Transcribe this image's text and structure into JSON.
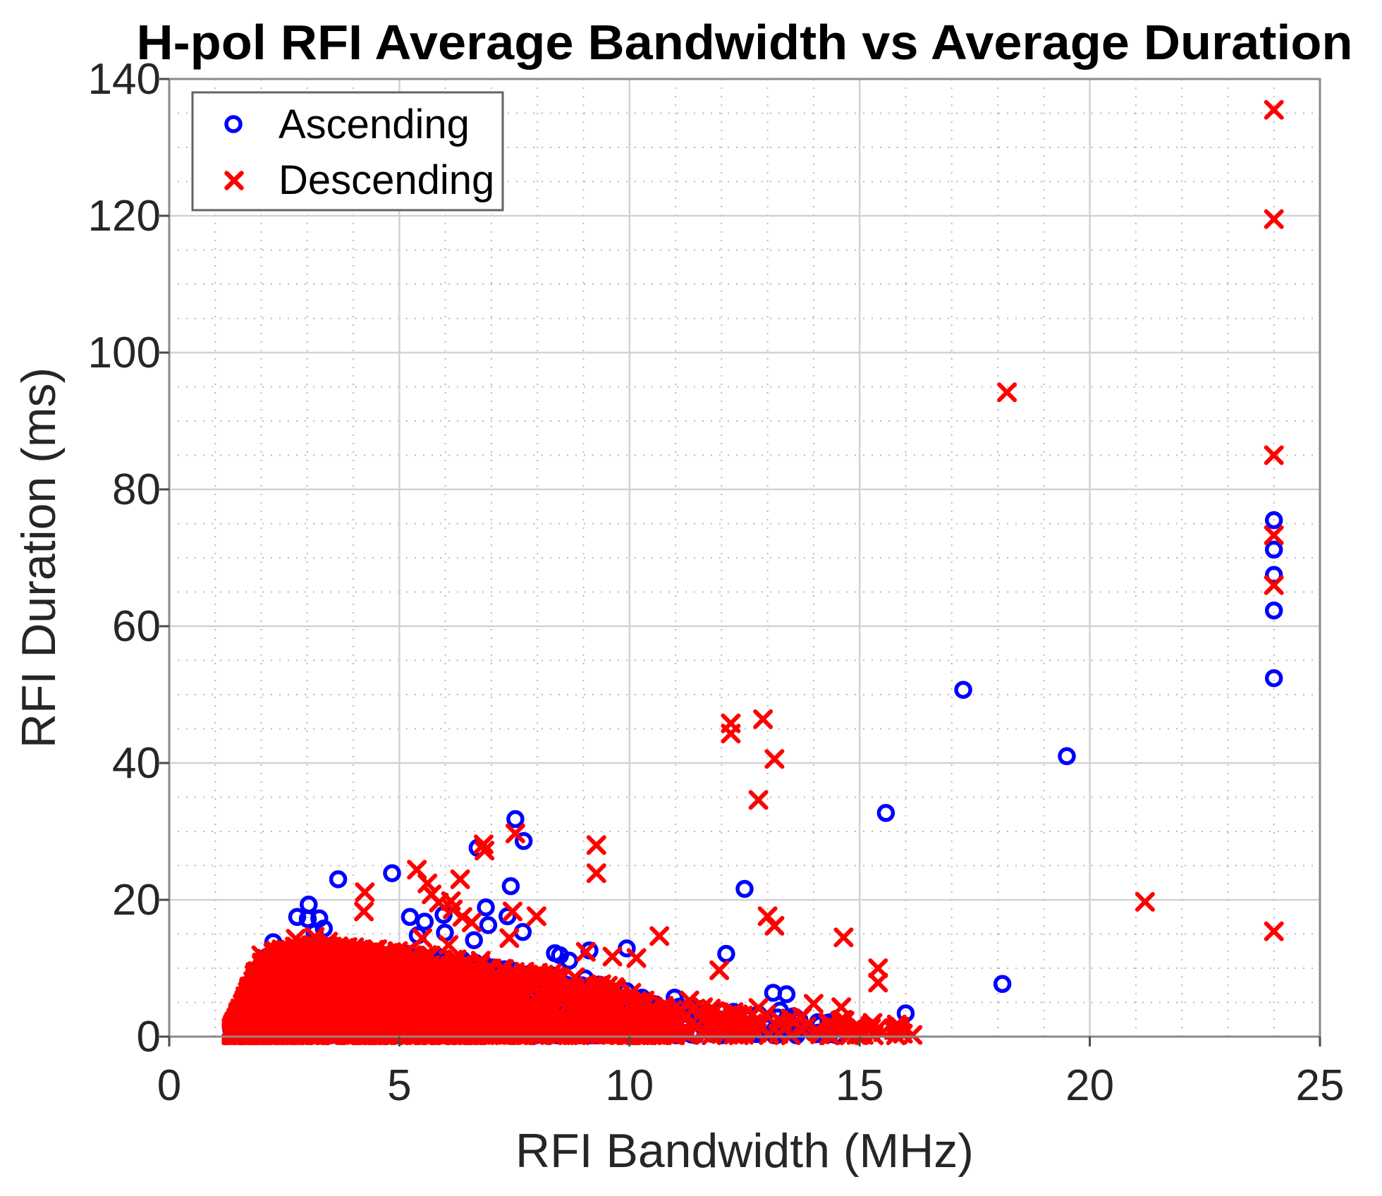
{
  "title": {
    "text": "H-pol RFI Average Bandwidth vs Average Duration"
  },
  "axes": {
    "x": {
      "label": "RFI Bandwidth (MHz)",
      "min": 0,
      "max": 25,
      "major_ticks": [
        0,
        5,
        10,
        15,
        20,
        25
      ],
      "minor_step": 1,
      "grid": true,
      "minor_grid": true
    },
    "y": {
      "label": "RFI Duration (ms)",
      "min": 0,
      "max": 140,
      "major_ticks": [
        0,
        20,
        40,
        60,
        80,
        100,
        120,
        140
      ],
      "minor_step": 5,
      "grid": true,
      "minor_grid": true
    }
  },
  "legend": {
    "position": "top-left",
    "entries": [
      {
        "label": "Ascending",
        "marker": "circle",
        "color": "#0000ff"
      },
      {
        "label": "Descending",
        "marker": "x",
        "color": "#ff0000"
      }
    ]
  },
  "colors": {
    "ascending": "#0000ff",
    "descending": "#ff0000",
    "grid_major": "#d2d2d2",
    "grid_minor": "#b8b8b8",
    "axis_box": "#8a8a8a",
    "tick": "#4a4a4a",
    "text": "#262626",
    "background": "#ffffff"
  },
  "chart_data": {
    "type": "scatter",
    "title": "H-pol RFI Average Bandwidth vs Average Duration",
    "xlabel": "RFI Bandwidth (MHz)",
    "ylabel": "RFI Duration (ms)",
    "xlim": [
      0,
      25
    ],
    "ylim": [
      0,
      140
    ],
    "grid": "major solid + minor dotted",
    "legend_position": "top-left inside",
    "series": [
      {
        "name": "Ascending",
        "marker": "circle",
        "color": "#0000ff",
        "points": [
          [
            24,
            75.5
          ],
          [
            24,
            71.2
          ],
          [
            24,
            67.5
          ],
          [
            24,
            62.3
          ],
          [
            24,
            52.4
          ],
          [
            17.25,
            50.7
          ],
          [
            19.5,
            41.0
          ],
          [
            15.57,
            32.7
          ],
          [
            18.1,
            7.7
          ],
          [
            16.0,
            3.4
          ],
          [
            12.5,
            21.6
          ],
          [
            12.1,
            12.1
          ],
          [
            9.94,
            12.9
          ],
          [
            10.98,
            5.7
          ],
          [
            13.12,
            6.4
          ],
          [
            13.41,
            6.2
          ],
          [
            13.27,
            3.8
          ],
          [
            11.97,
            3.6
          ],
          [
            12.36,
            3.3
          ],
          [
            7.52,
            31.8
          ],
          [
            7.7,
            28.6
          ],
          [
            6.7,
            27.6
          ],
          [
            7.42,
            22.0
          ],
          [
            7.35,
            17.6
          ],
          [
            7.68,
            15.3
          ],
          [
            3.67,
            23.0
          ],
          [
            4.84,
            23.9
          ],
          [
            3.03,
            19.3
          ],
          [
            2.78,
            17.5
          ],
          [
            3.01,
            17.2
          ],
          [
            3.26,
            17.3
          ],
          [
            3.16,
            15.2
          ],
          [
            3.36,
            15.8
          ],
          [
            2.26,
            13.8
          ],
          [
            5.23,
            17.5
          ],
          [
            5.55,
            16.8
          ],
          [
            5.96,
            17.8
          ],
          [
            5.4,
            14.8
          ],
          [
            5.99,
            15.2
          ],
          [
            6.88,
            18.9
          ],
          [
            6.93,
            16.3
          ],
          [
            6.62,
            14.1
          ],
          [
            8.38,
            12.2
          ],
          [
            8.49,
            11.9
          ],
          [
            8.69,
            11.1
          ],
          [
            9.13,
            12.6
          ],
          [
            9.33,
            5.7
          ]
        ]
      },
      {
        "name": "Descending",
        "marker": "x",
        "color": "#ff0000",
        "points": [
          [
            24,
            135.5
          ],
          [
            24,
            119.5
          ],
          [
            24,
            85.0
          ],
          [
            24,
            73.3
          ],
          [
            24,
            66.0
          ],
          [
            24,
            15.4
          ],
          [
            18.2,
            94.2
          ],
          [
            21.2,
            19.7
          ],
          [
            12.2,
            45.8
          ],
          [
            12.2,
            44.3
          ],
          [
            12.9,
            46.4
          ],
          [
            13.15,
            40.6
          ],
          [
            12.8,
            34.6
          ],
          [
            13.0,
            17.6
          ],
          [
            13.15,
            16.2
          ],
          [
            14.65,
            14.5
          ],
          [
            15.4,
            10.0
          ],
          [
            15.4,
            7.9
          ],
          [
            14.0,
            4.8
          ],
          [
            14.6,
            4.3
          ],
          [
            10.65,
            14.7
          ],
          [
            11.95,
            9.7
          ],
          [
            11.3,
            5.3
          ],
          [
            11.6,
            4.3
          ],
          [
            11.77,
            4.1
          ],
          [
            12.26,
            3.6
          ],
          [
            12.8,
            4.2
          ],
          [
            9.28,
            28.0
          ],
          [
            9.28,
            23.9
          ],
          [
            9.63,
            11.7
          ],
          [
            9.05,
            12.4
          ],
          [
            10.15,
            11.5
          ],
          [
            7.52,
            29.7
          ],
          [
            6.83,
            28.1
          ],
          [
            6.85,
            27.2
          ],
          [
            7.98,
            17.6
          ],
          [
            7.46,
            18.3
          ],
          [
            7.39,
            14.4
          ],
          [
            5.38,
            24.4
          ],
          [
            5.61,
            22.4
          ],
          [
            5.7,
            20.8
          ],
          [
            5.86,
            19.6
          ],
          [
            6.32,
            23.0
          ],
          [
            6.12,
            19.8
          ],
          [
            6.16,
            18.6
          ],
          [
            6.37,
            17.5
          ],
          [
            6.57,
            16.7
          ],
          [
            6.07,
            13.4
          ],
          [
            6.77,
            11.1
          ],
          [
            4.25,
            21.1
          ],
          [
            4.23,
            18.3
          ],
          [
            5.5,
            14.4
          ],
          [
            3.16,
            14.6
          ],
          [
            2.75,
            14.3
          ],
          [
            2.0,
            11.9
          ],
          [
            3.45,
            13.9
          ]
        ]
      }
    ],
    "dense_cluster": {
      "description": "solid mass of overlapping markers hugging the x-axis, red drawn over blue",
      "x_start": 1.35,
      "envelope": [
        [
          1.35,
          1.2
        ],
        [
          1.6,
          5
        ],
        [
          1.8,
          8.5
        ],
        [
          2.0,
          11
        ],
        [
          2.3,
          12.5
        ],
        [
          2.6,
          13
        ],
        [
          3.2,
          13.5
        ],
        [
          4.0,
          13
        ],
        [
          5.0,
          12.5
        ],
        [
          6.0,
          11.5
        ],
        [
          7.0,
          10.5
        ],
        [
          8.0,
          9.5
        ],
        [
          9.0,
          8.5
        ],
        [
          10.0,
          6.5
        ],
        [
          10.5,
          5
        ],
        [
          11.5,
          4
        ],
        [
          12.5,
          3.5
        ],
        [
          13.5,
          3
        ],
        [
          14.5,
          2.5
        ],
        [
          15.5,
          2
        ],
        [
          16.2,
          1.5
        ]
      ],
      "groups": [
        {
          "series": "Descending",
          "count": 2000,
          "x_min": 1.35,
          "x_max": 6.6,
          "x_pow": 1.3,
          "y_pow": 1.5,
          "seed": 101
        },
        {
          "series": "Descending",
          "count": 480,
          "x_min": 6.6,
          "x_max": 10.5,
          "x_pow": 1.2,
          "y_pow": 1.5,
          "seed": 102
        },
        {
          "series": "Descending",
          "count": 150,
          "x_min": 10.5,
          "x_max": 16.2,
          "x_pow": 1.5,
          "y_pow": 1.3,
          "seed": 103
        },
        {
          "series": "Ascending",
          "count": 1050,
          "x_min": 1.35,
          "x_max": 6.6,
          "x_pow": 1.25,
          "y_pow": 1.7,
          "seed": 201
        },
        {
          "series": "Ascending",
          "count": 300,
          "x_min": 6.6,
          "x_max": 10.5,
          "x_pow": 1.2,
          "y_pow": 1.8,
          "seed": 202
        },
        {
          "series": "Ascending",
          "count": 90,
          "x_min": 10.5,
          "x_max": 14.5,
          "x_pow": 1.4,
          "y_pow": 1.5,
          "seed": 203
        }
      ]
    }
  }
}
